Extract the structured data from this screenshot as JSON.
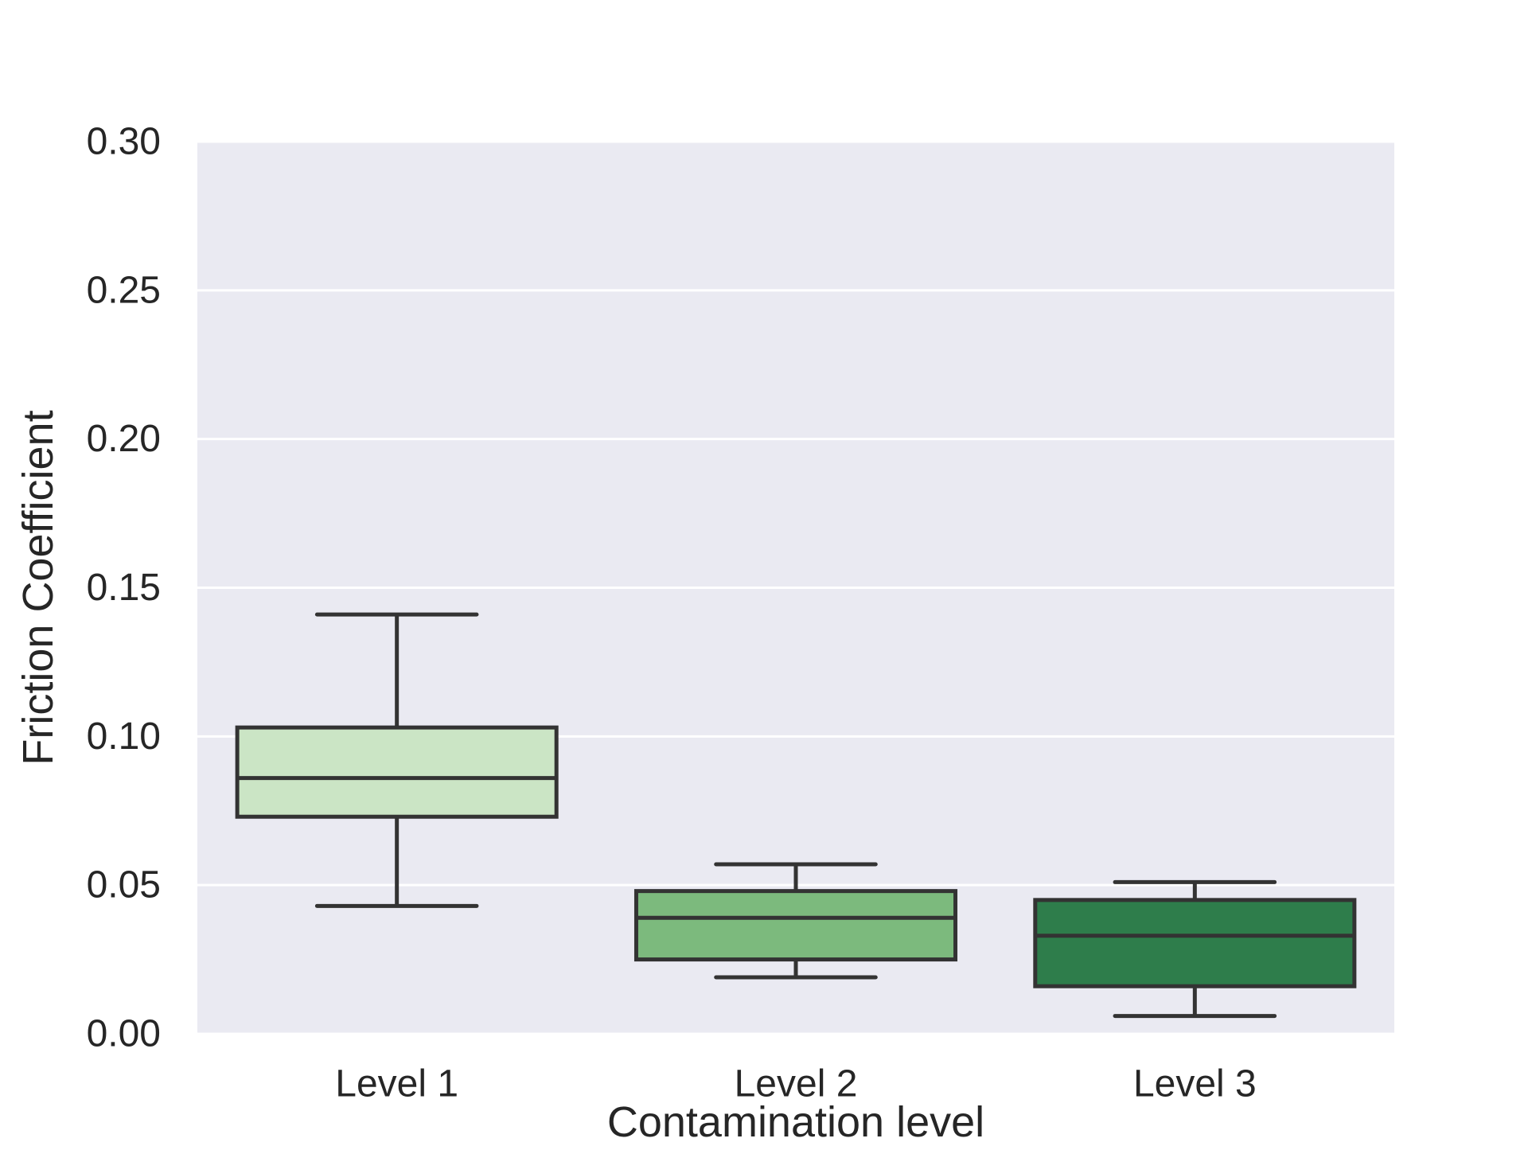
{
  "chart_data": {
    "type": "box",
    "title": "",
    "xlabel": "Contamination level",
    "ylabel": "Friction Coefficient",
    "ylim": [
      0,
      0.3
    ],
    "yticks": [
      0.0,
      0.05,
      0.1,
      0.15,
      0.2,
      0.25,
      0.3
    ],
    "ytick_labels": [
      "0.00",
      "0.05",
      "0.10",
      "0.15",
      "0.20",
      "0.25",
      "0.30"
    ],
    "categories": [
      "Level 1",
      "Level 2",
      "Level 3"
    ],
    "boxes": [
      {
        "category": "Level 1",
        "whisker_low": 0.043,
        "q1": 0.073,
        "median": 0.086,
        "q3": 0.103,
        "whisker_high": 0.141,
        "color": "#cbe5c5"
      },
      {
        "category": "Level 2",
        "whisker_low": 0.019,
        "q1": 0.025,
        "median": 0.039,
        "q3": 0.048,
        "whisker_high": 0.057,
        "color": "#7cba7d"
      },
      {
        "category": "Level 3",
        "whisker_low": 0.006,
        "q1": 0.016,
        "median": 0.033,
        "q3": 0.045,
        "whisker_high": 0.051,
        "color": "#2e7d4b"
      }
    ],
    "grid": true,
    "style": {
      "background": "#eaeaf2",
      "grid_color": "#ffffff",
      "line_color": "#333333"
    }
  }
}
